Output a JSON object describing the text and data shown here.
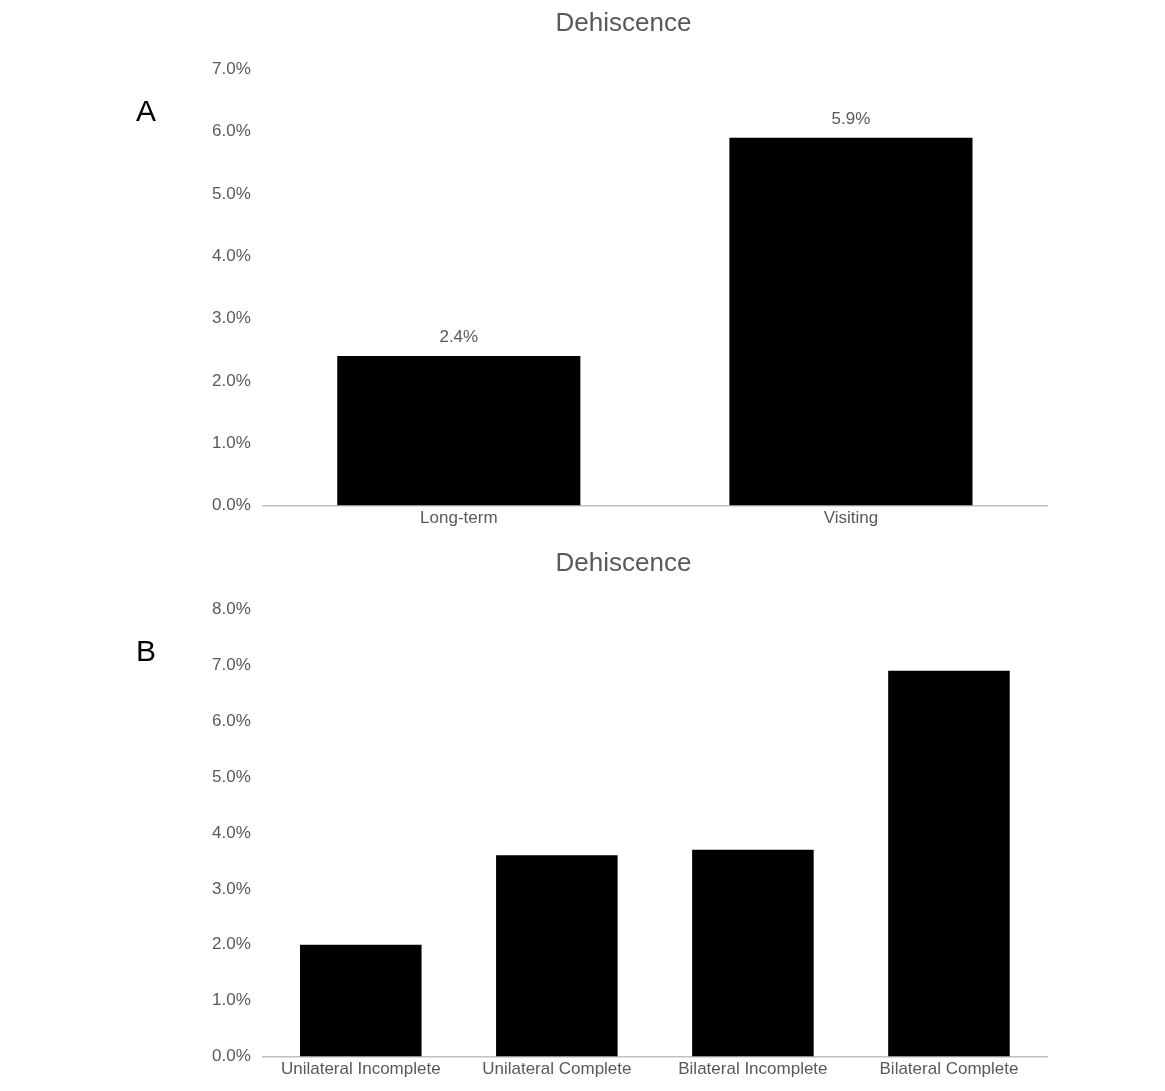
{
  "chart_data": [
    {
      "type": "bar",
      "title": "Dehiscence",
      "annotations": [
        "A"
      ],
      "categories": [
        "Long-term",
        "Visiting"
      ],
      "values": [
        2.4,
        5.9
      ],
      "color": "#000000",
      "value_labels": [
        "2.4%",
        "5.9%"
      ],
      "ylim": [
        0,
        7
      ],
      "yticks": [
        {
          "value": 0,
          "label": "0.0%"
        },
        {
          "value": 1,
          "label": "1.0%"
        },
        {
          "value": 2,
          "label": "2.0%"
        },
        {
          "value": 3,
          "label": "3.0%"
        },
        {
          "value": 4,
          "label": "4.0%"
        },
        {
          "value": 5,
          "label": "5.0%"
        },
        {
          "value": 6,
          "label": "6.0%"
        },
        {
          "value": 7,
          "label": "7.0%"
        }
      ],
      "grid": false,
      "legend": false
    },
    {
      "type": "bar",
      "title": "Dehiscence",
      "annotations": [
        "B"
      ],
      "categories": [
        "Unilateral Incomplete",
        "Unilateral Complete",
        "Bilateral Incomplete",
        "Bilateral Complete"
      ],
      "values": [
        2.0,
        3.6,
        3.7,
        6.9
      ],
      "color": "#000000",
      "ylim": [
        0,
        8
      ],
      "yticks": [
        {
          "value": 0,
          "label": "0.0%"
        },
        {
          "value": 1,
          "label": "1.0%"
        },
        {
          "value": 2,
          "label": "2.0%"
        },
        {
          "value": 3,
          "label": "3.0%"
        },
        {
          "value": 4,
          "label": "4.0%"
        },
        {
          "value": 5,
          "label": "5.0%"
        },
        {
          "value": 6,
          "label": "6.0%"
        },
        {
          "value": 7,
          "label": "7.0%"
        },
        {
          "value": 8,
          "label": "8.0%"
        }
      ],
      "grid": false,
      "legend": false
    }
  ]
}
